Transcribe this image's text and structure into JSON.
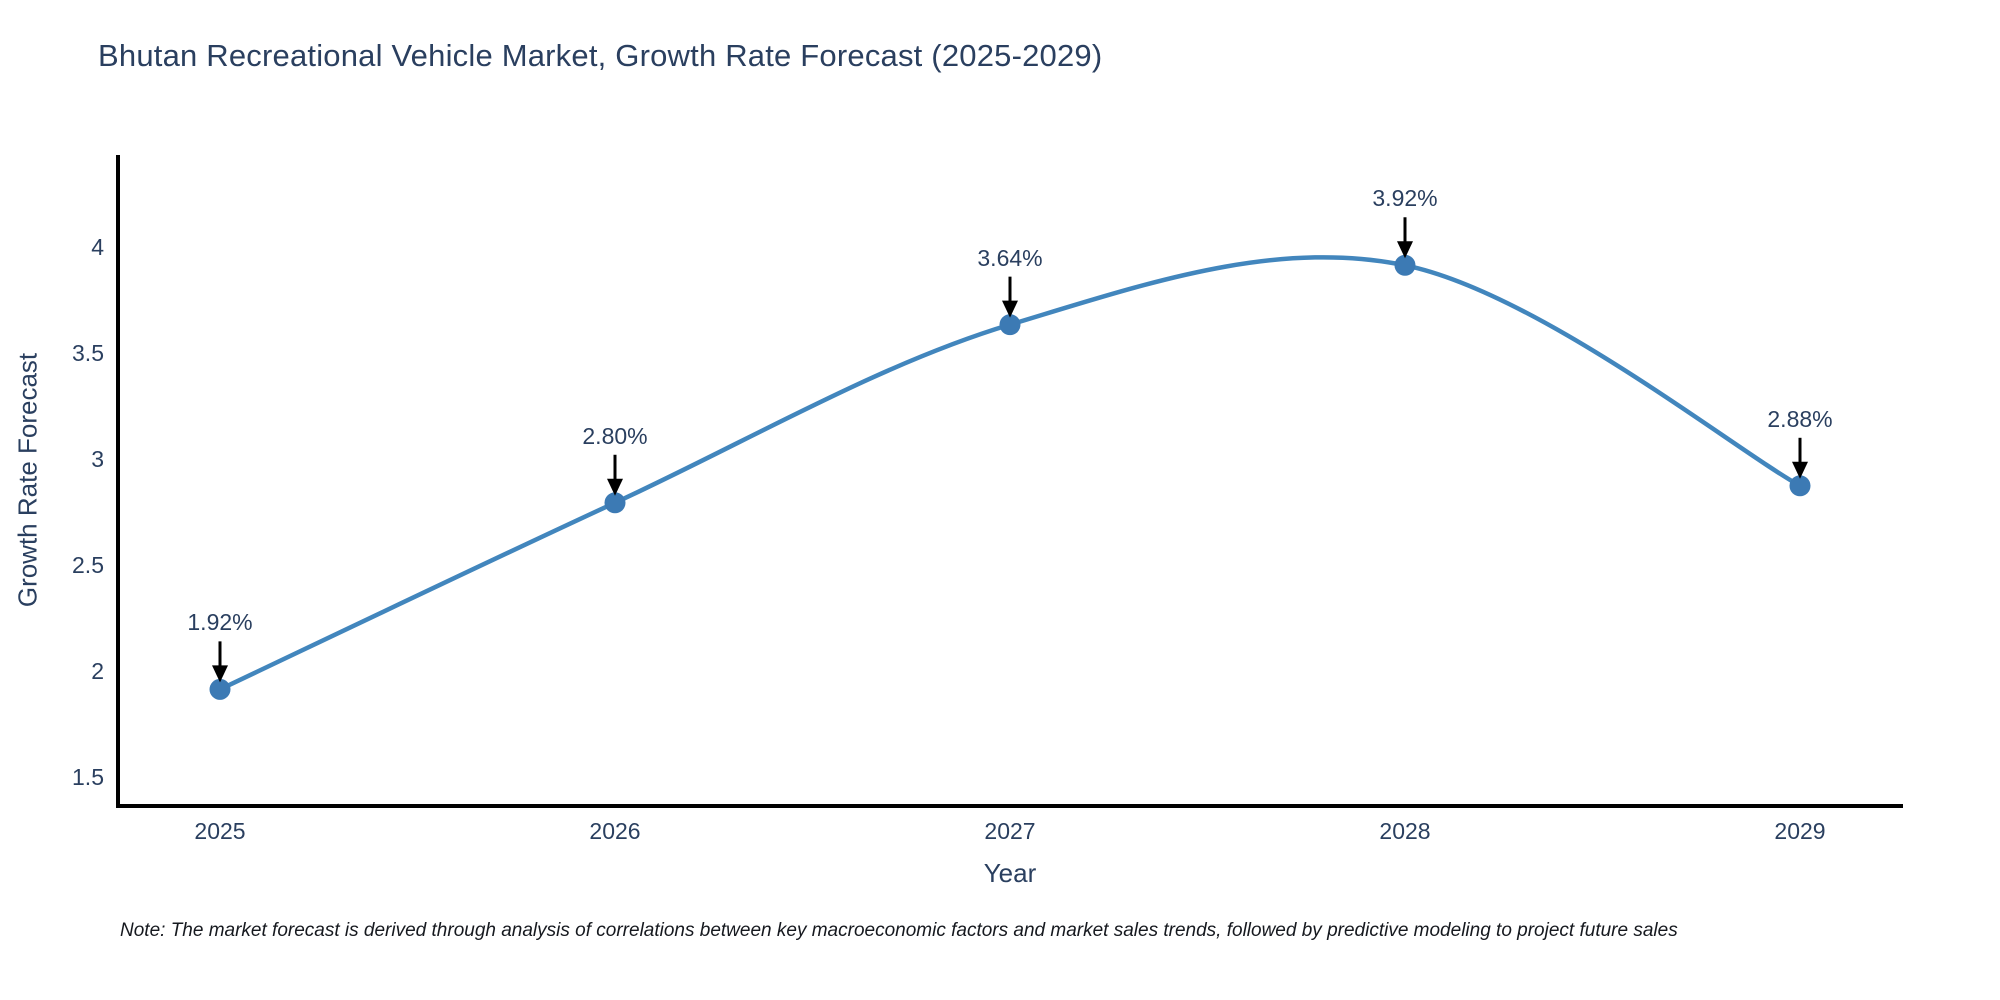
{
  "note": "Note: The market forecast is derived through analysis of correlations between key macroeconomic factors and market sales trends, followed by predictive modeling to project future sales",
  "chart_data": {
    "type": "line",
    "title": "Bhutan Recreational Vehicle Market, Growth Rate Forecast (2025-2029)",
    "xlabel": "Year",
    "ylabel": "Growth Rate Forecast",
    "x": [
      "2025",
      "2026",
      "2027",
      "2028",
      "2029"
    ],
    "series": [
      {
        "name": "Growth Rate Forecast",
        "values": [
          1.92,
          2.8,
          3.64,
          3.92,
          2.88
        ]
      }
    ],
    "point_labels": [
      "1.92%",
      "2.80%",
      "3.64%",
      "3.92%",
      "2.88%"
    ],
    "yticks": [
      1.5,
      2,
      2.5,
      3,
      3.5,
      4
    ],
    "ylim": [
      1.37,
      4.44
    ],
    "line_shape": "spline",
    "grid": "off",
    "legend": "none",
    "colors": {
      "line": "#4286bd",
      "marker": "#3c7ab4",
      "axis": "#000000",
      "text": "#2a3f5f",
      "arrow": "#000000",
      "background": "#ffffff"
    }
  }
}
